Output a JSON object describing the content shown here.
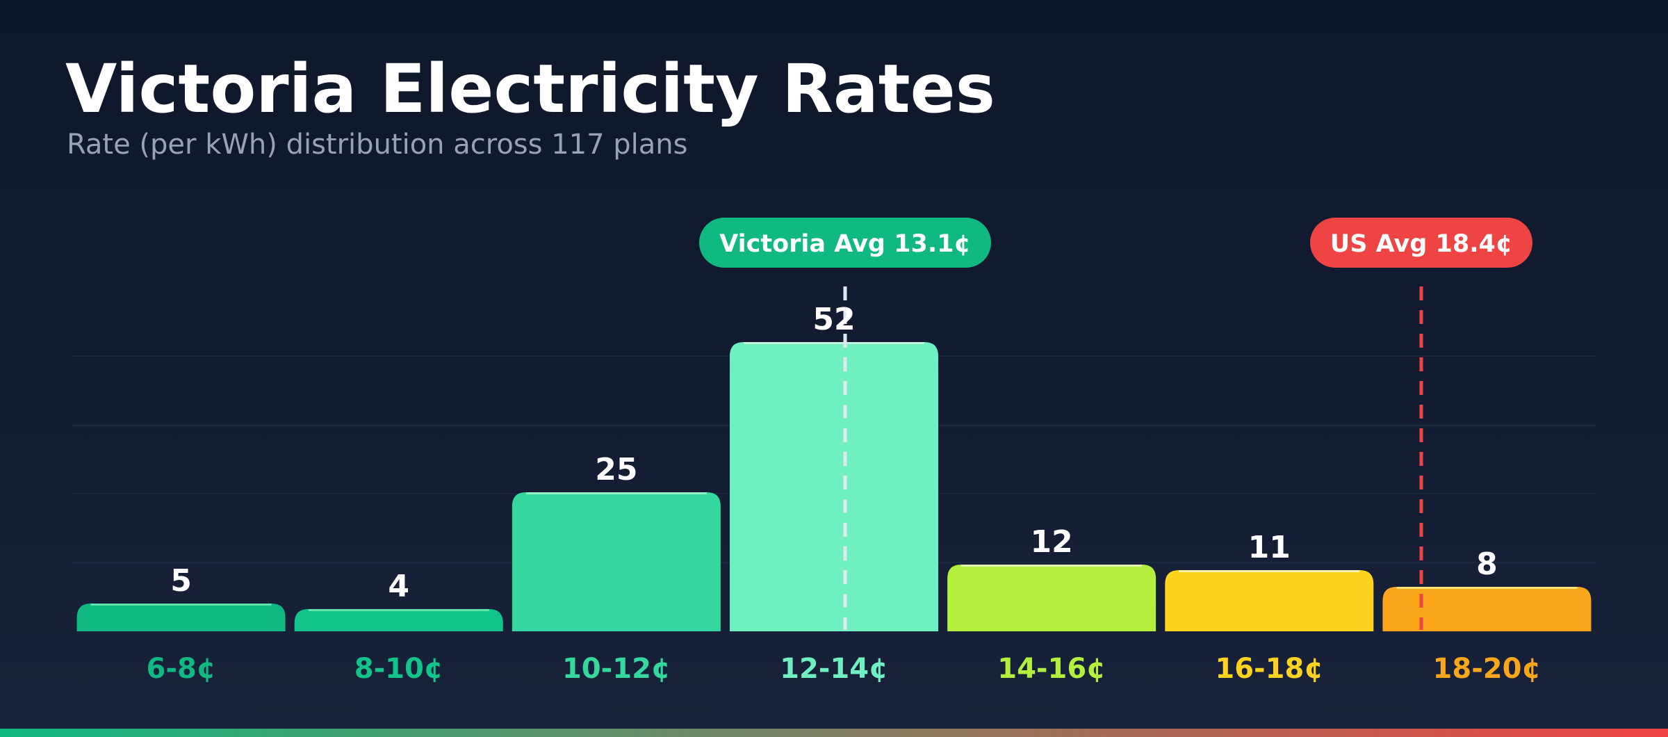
{
  "chart_data": {
    "type": "bar",
    "title": "Victoria Electricity Rates",
    "subtitle": "Rate (per kWh) distribution across 117 plans",
    "categories": [
      "6-8¢",
      "8-10¢",
      "10-12¢",
      "12-14¢",
      "14-16¢",
      "16-18¢",
      "18-20¢"
    ],
    "values": [
      5,
      4,
      25,
      52,
      12,
      11,
      8
    ],
    "ylim": [
      0,
      52
    ],
    "bar_colors": [
      "#10b981",
      "#10c48a",
      "#34d89f",
      "#6ef0c0",
      "#b4ef3d",
      "#fdd31f",
      "#faa61a"
    ],
    "bar_highlight_colors": [
      "#6ee7b7",
      "#6ee7b7",
      "#a7f3d0",
      "#d1fae5",
      "#ecfccb",
      "#fef9c3",
      "#fef08a"
    ],
    "label_colors": [
      "#10b981",
      "#10c48a",
      "#34d89f",
      "#6ef0c0",
      "#b4ef3d",
      "#fdd31f",
      "#faa61a"
    ],
    "grid": true,
    "reference_lines": [
      {
        "name": "Victoria Avg 13.1¢",
        "value": 13.1,
        "color": "#10b981",
        "line_color": "#e2e8f0"
      },
      {
        "name": "US Avg 18.4¢",
        "value": 18.4,
        "color": "#ef4444",
        "line_color": "#ef4444"
      }
    ]
  },
  "colors": {
    "background": "#0f172a",
    "title": "#ffffff",
    "subtitle": "#94a3b8",
    "value_label": "#ffffff",
    "stripe_start": "#10b981",
    "stripe_end": "#ef4444"
  }
}
